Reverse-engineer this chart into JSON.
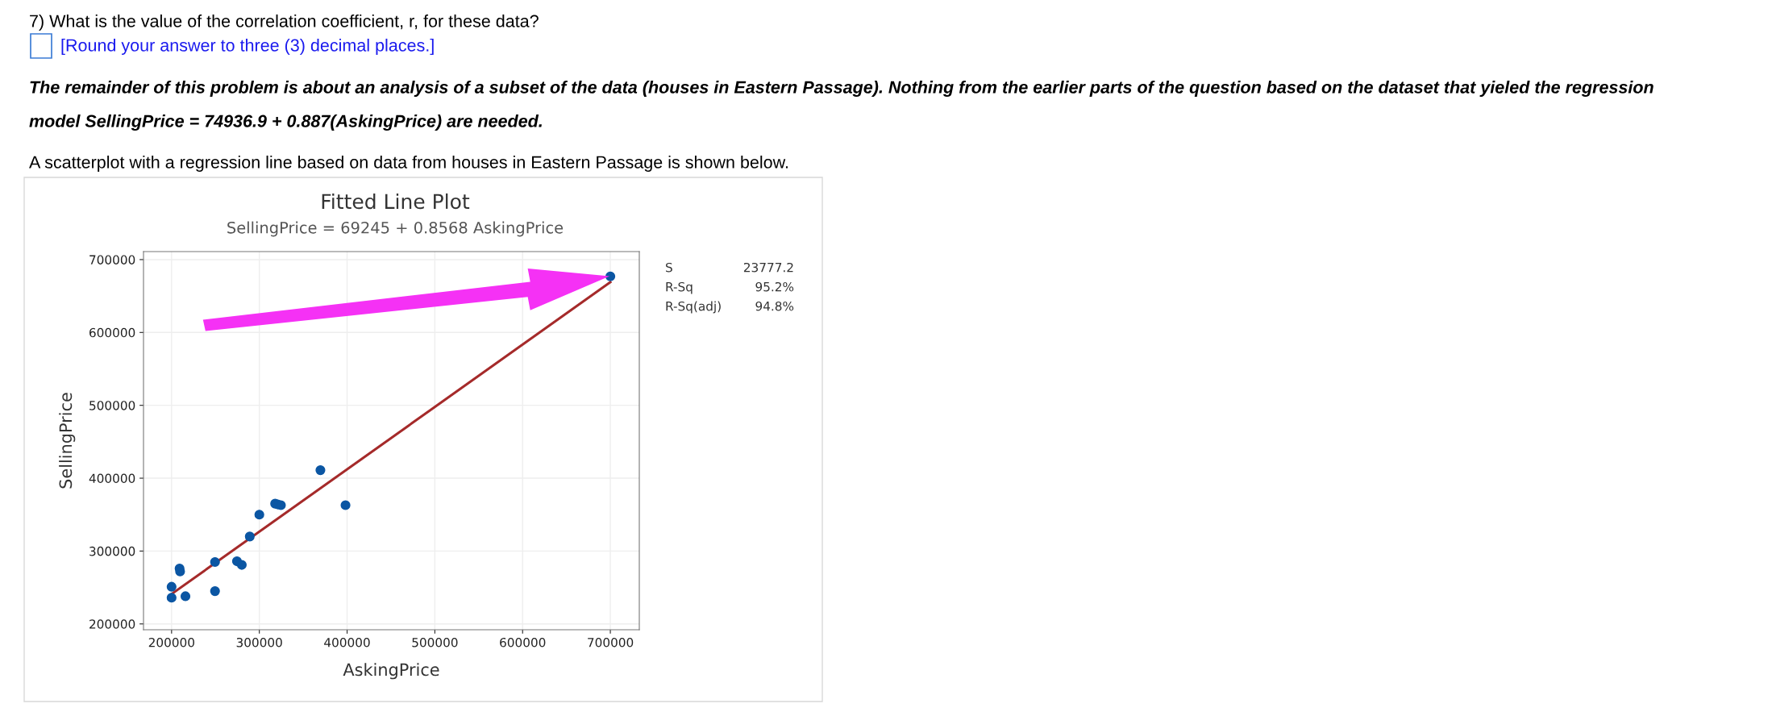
{
  "chart_data": {
    "type": "scatter",
    "title": "Fitted Line Plot",
    "subtitle": "SellingPrice = 69245 + 0.8568 AskingPrice",
    "xlabel": "AskingPrice",
    "ylabel": "SellingPrice",
    "series": [
      {
        "color": "#0b56a3",
        "marker": "circle",
        "x": [
          200000,
          200000,
          215800,
          209100,
          209700,
          249500,
          249500,
          274500,
          280000,
          289100,
          300000,
          318000,
          321000,
          324600,
          369600,
          398200,
          700000
        ],
        "values": [
          236000,
          251000,
          238000,
          276000,
          272000,
          285000,
          245000,
          286000,
          281000,
          320000,
          350000,
          365000,
          364000,
          363000,
          411000,
          363000,
          677000
        ]
      },
      {
        "type": "line",
        "color": "#a52a2a",
        "x": [
          200000,
          700000
        ],
        "values": [
          241000,
          669000
        ]
      }
    ],
    "xlim": [
      168000,
      733000
    ],
    "ylim": [
      192000,
      711000
    ],
    "xticks": [
      200000,
      300000,
      400000,
      500000,
      600000,
      700000
    ],
    "yticks": [
      200000,
      300000,
      400000,
      500000,
      600000,
      700000
    ],
    "grid": true,
    "line_style": "solid",
    "annotations": [
      "7) What is the value of the correlation coefficient, r, for these data?",
      "[Round your answer to three (3) decimal places.]",
      "The remainder of this problem is about an analysis of a subset of the data (houses in Eastern Passage). Nothing from the earlier parts of the question based on the dataset that yieled the regression",
      "model SellingPrice = 74936.9 + 0.887(AskingPrice) are needed.",
      "A scatterplot with a regression line based on data from houses in Eastern Passage is shown below.",
      "S",
      "23777.2",
      "R-Sq",
      "95.2%",
      "R-Sq(adj)",
      "94.8%"
    ]
  }
}
